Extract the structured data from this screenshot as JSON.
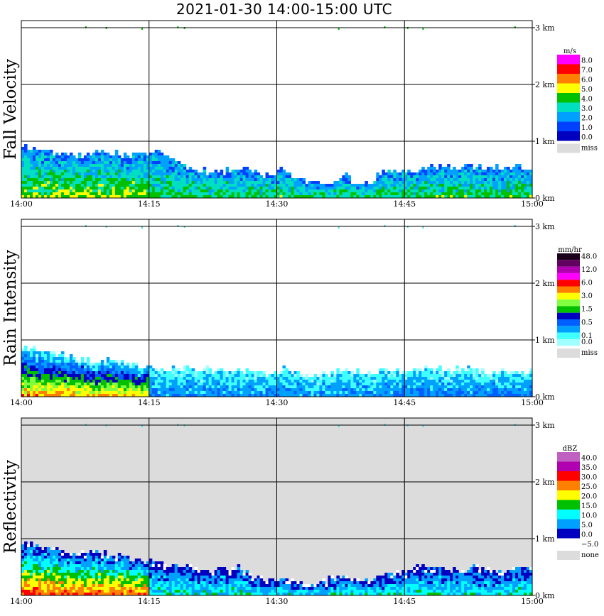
{
  "title": "2021-01-30  14:00-15:00 UTC",
  "x_ticks": [
    "14:00",
    "14:15",
    "14:30",
    "14:45",
    "15:00"
  ],
  "height_ticks": [
    "3 km",
    "2 km",
    "1 km",
    "0 km"
  ],
  "colors": {
    "grid": "#000000",
    "missing": "#dcdcdc"
  },
  "chart_data": [
    {
      "type": "heatmap",
      "title": "Fall Velocity",
      "unit": "m/s",
      "missing_label": "miss",
      "x_range": [
        "14:00",
        "15:00"
      ],
      "y_range_km": [
        0,
        3
      ],
      "color_scale": [
        {
          "label": "8.0",
          "color": "#ff00ff"
        },
        {
          "label": "7.0",
          "color": "#ff0000"
        },
        {
          "label": "6.0",
          "color": "#ff8000"
        },
        {
          "label": "5.0",
          "color": "#ffff00"
        },
        {
          "label": "4.0",
          "color": "#00c000"
        },
        {
          "label": "3.0",
          "color": "#00e0c0"
        },
        {
          "label": "2.0",
          "color": "#00a0ff"
        },
        {
          "label": "1.0",
          "color": "#0040ff"
        },
        {
          "label": "0.0",
          "color": "#0000c0"
        }
      ],
      "echo_top_km": [
        0.95,
        0.9,
        0.85,
        0.8,
        0.78,
        0.8,
        0.82,
        0.8,
        0.78,
        0.85,
        0.8,
        0.6,
        0.55,
        0.45,
        0.5,
        0.55,
        0.45,
        0.4,
        0.55,
        0.35,
        0.3,
        0.25,
        0.45,
        0.3,
        0.3,
        0.55,
        0.5,
        0.45,
        0.6,
        0.55,
        0.55,
        0.6,
        0.55,
        0.58,
        0.6,
        0.55
      ]
    },
    {
      "type": "heatmap",
      "title": "Rain Intensity",
      "unit": "mm/hr",
      "missing_label": "miss",
      "x_range": [
        "14:00",
        "15:00"
      ],
      "y_range_km": [
        0,
        3
      ],
      "color_scale": [
        {
          "label": "48.0",
          "color": "#1a001a"
        },
        {
          "label": "",
          "color": "#600060"
        },
        {
          "label": "12.0",
          "color": "#b000b0"
        },
        {
          "label": "",
          "color": "#ff00ff"
        },
        {
          "label": "6.0",
          "color": "#ff0000"
        },
        {
          "label": "",
          "color": "#ff8000"
        },
        {
          "label": "3.0",
          "color": "#ffff00"
        },
        {
          "label": "",
          "color": "#80ff40"
        },
        {
          "label": "1.5",
          "color": "#00c000"
        },
        {
          "label": "",
          "color": "#0000c0"
        },
        {
          "label": "0.5",
          "color": "#0060ff"
        },
        {
          "label": "",
          "color": "#00a0ff"
        },
        {
          "label": "0.1",
          "color": "#40ffff"
        },
        {
          "label": "0.0",
          "color": "#a0ffff"
        }
      ],
      "echo_top_km": [
        0.9,
        0.85,
        0.8,
        0.75,
        0.7,
        0.65,
        0.7,
        0.6,
        0.55,
        0.55,
        0.5,
        0.55,
        0.5,
        0.5,
        0.45,
        0.5,
        0.45,
        0.4,
        0.5,
        0.45,
        0.4,
        0.4,
        0.5,
        0.45,
        0.4,
        0.5,
        0.5,
        0.5,
        0.55,
        0.5,
        0.5,
        0.5,
        0.45,
        0.5,
        0.45,
        0.5
      ]
    },
    {
      "type": "heatmap",
      "title": "Reflectivity",
      "unit": "dBZ",
      "missing_label": "none",
      "x_range": [
        "14:00",
        "15:00"
      ],
      "y_range_km": [
        0,
        3
      ],
      "color_scale": [
        {
          "label": "40.0",
          "color": "#c060c0"
        },
        {
          "label": "35.0",
          "color": "#b000b0"
        },
        {
          "label": "30.0",
          "color": "#ff0000"
        },
        {
          "label": "25.0",
          "color": "#ff8000"
        },
        {
          "label": "20.0",
          "color": "#ffff00"
        },
        {
          "label": "15.0",
          "color": "#00c000"
        },
        {
          "label": "10.0",
          "color": "#00ffff"
        },
        {
          "label": "5.0",
          "color": "#00a0ff"
        },
        {
          "label": "0.0",
          "color": "#0000c0"
        },
        {
          "label": "−5.0",
          "color": "#ffffff"
        }
      ],
      "echo_top_km": [
        0.95,
        0.9,
        0.85,
        0.8,
        0.75,
        0.8,
        0.75,
        0.7,
        0.65,
        0.6,
        0.55,
        0.55,
        0.5,
        0.45,
        0.5,
        0.5,
        0.35,
        0.3,
        0.3,
        0.25,
        0.2,
        0.3,
        0.35,
        0.3,
        0.3,
        0.4,
        0.45,
        0.55,
        0.55,
        0.5,
        0.45,
        0.5,
        0.5,
        0.45,
        0.5,
        0.55
      ]
    }
  ]
}
